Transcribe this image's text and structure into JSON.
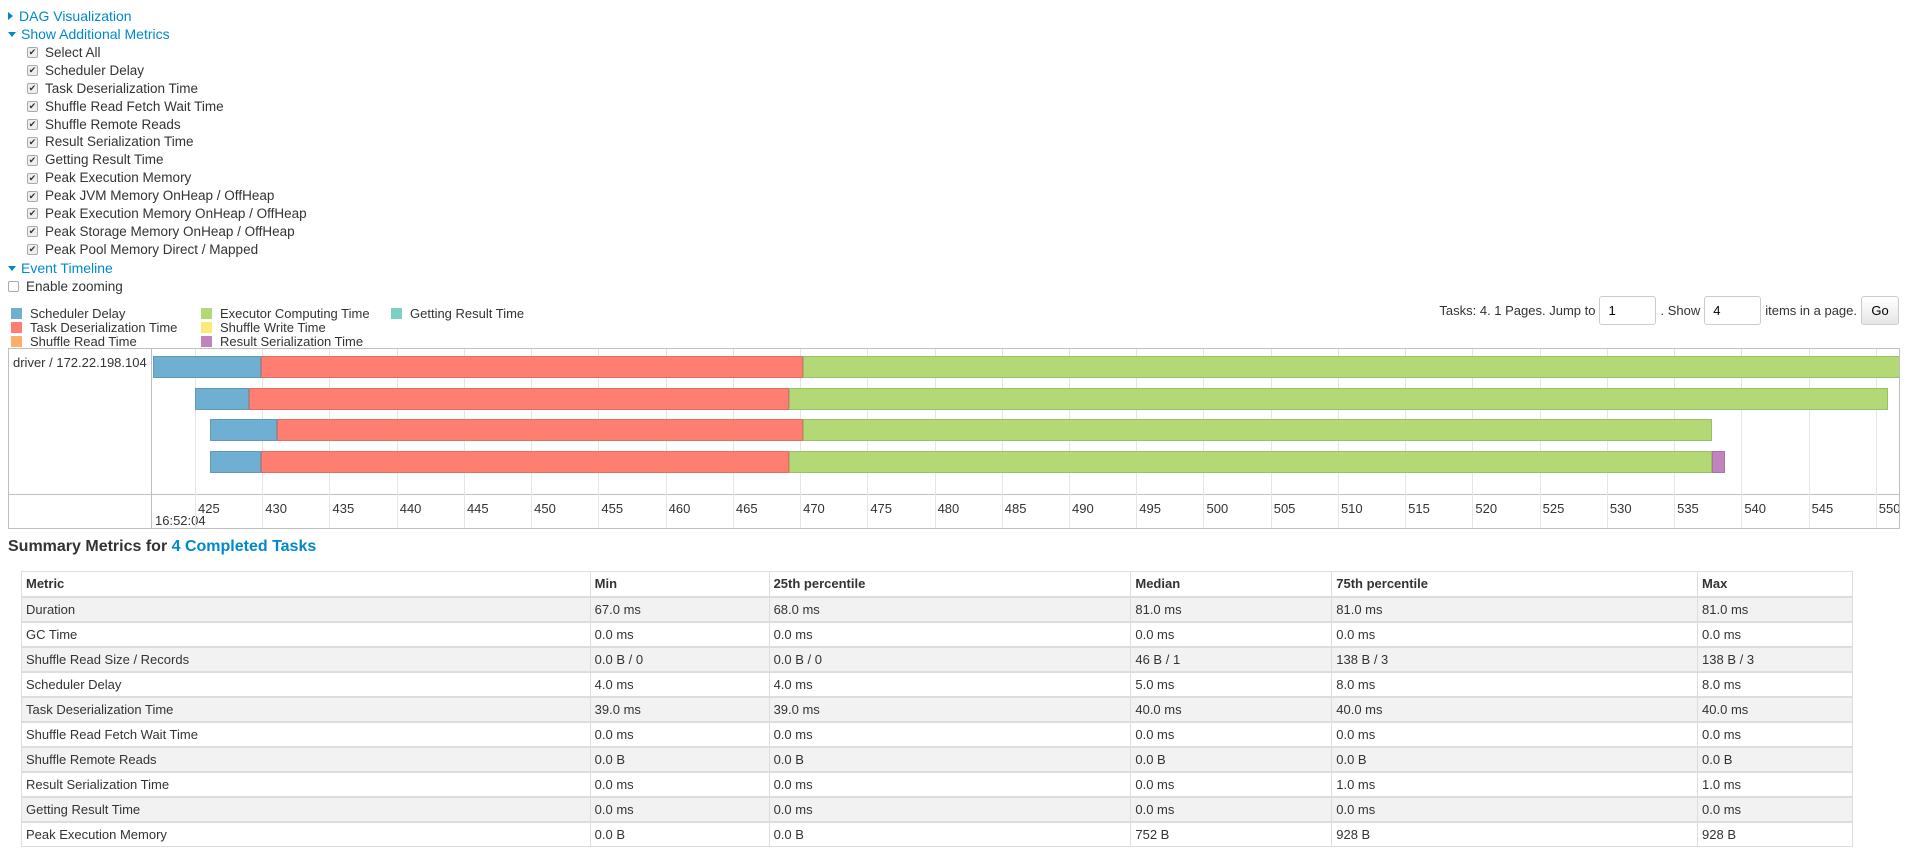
{
  "nav": {
    "dag": "DAG Visualization",
    "additional": "Show Additional Metrics",
    "timeline": "Event Timeline",
    "zoom": "Enable zooming"
  },
  "metrics": [
    {
      "label": "Select All",
      "checked": true
    },
    {
      "label": "Scheduler Delay",
      "checked": true
    },
    {
      "label": "Task Deserialization Time",
      "checked": true
    },
    {
      "label": "Shuffle Read Fetch Wait Time",
      "checked": true
    },
    {
      "label": "Shuffle Remote Reads",
      "checked": true
    },
    {
      "label": "Result Serialization Time",
      "checked": true
    },
    {
      "label": "Getting Result Time",
      "checked": true
    },
    {
      "label": "Peak Execution Memory",
      "checked": true
    },
    {
      "label": "Peak JVM Memory OnHeap / OffHeap",
      "checked": true
    },
    {
      "label": "Peak Execution Memory OnHeap / OffHeap",
      "checked": true
    },
    {
      "label": "Peak Storage Memory OnHeap / OffHeap",
      "checked": true
    },
    {
      "label": "Peak Pool Memory Direct / Mapped",
      "checked": true
    }
  ],
  "legend": [
    {
      "label": "Scheduler Delay",
      "color": "#6fb0d2"
    },
    {
      "label": "Executor Computing Time",
      "color": "#b2d975"
    },
    {
      "label": "Getting Result Time",
      "color": "#7ccfc3"
    },
    {
      "label": "Task Deserialization Time",
      "color": "#ff7e72"
    },
    {
      "label": "Shuffle Write Time",
      "color": "#ffe87a"
    },
    {
      "label": "",
      "color": ""
    },
    {
      "label": "Shuffle Read Time",
      "color": "#ffae6a"
    },
    {
      "label": "Result Serialization Time",
      "color": "#c183bd"
    }
  ],
  "pager": {
    "prefix": "Tasks: 4. 1 Pages. Jump to",
    "page": "1",
    "mid": ". Show",
    "size": "4",
    "suffix": "items in a page.",
    "go": "Go"
  },
  "timeline": {
    "executor": "driver / 172.22.198.104",
    "date": "16:52:04",
    "xlim": [
      421.8,
      551.8
    ],
    "ticks": [
      425,
      430,
      435,
      440,
      445,
      450,
      455,
      460,
      465,
      470,
      475,
      480,
      485,
      490,
      495,
      500,
      505,
      510,
      515,
      520,
      525,
      530,
      535,
      540,
      545,
      550
    ],
    "tasks": [
      {
        "segments": [
          {
            "type": "Scheduler Delay",
            "start": 421.9,
            "end": 429.9
          },
          {
            "type": "Task Deserialization Time",
            "start": 429.9,
            "end": 470.2
          },
          {
            "type": "Executor Computing Time",
            "start": 470.2,
            "end": 552.5
          }
        ]
      },
      {
        "segments": [
          {
            "type": "Scheduler Delay",
            "start": 425.0,
            "end": 429.0
          },
          {
            "type": "Task Deserialization Time",
            "start": 429.0,
            "end": 469.2
          },
          {
            "type": "Executor Computing Time",
            "start": 469.2,
            "end": 550.9
          }
        ]
      },
      {
        "segments": [
          {
            "type": "Scheduler Delay",
            "start": 426.1,
            "end": 431.1
          },
          {
            "type": "Task Deserialization Time",
            "start": 431.1,
            "end": 470.2
          },
          {
            "type": "Executor Computing Time",
            "start": 470.2,
            "end": 537.8
          }
        ]
      },
      {
        "segments": [
          {
            "type": "Scheduler Delay",
            "start": 426.1,
            "end": 429.9
          },
          {
            "type": "Task Deserialization Time",
            "start": 429.9,
            "end": 469.2
          },
          {
            "type": "Executor Computing Time",
            "start": 469.2,
            "end": 537.8
          },
          {
            "type": "Result Serialization Time",
            "start": 537.8,
            "end": 538.8
          }
        ]
      }
    ]
  },
  "summary": {
    "prefix": "Summary Metrics for ",
    "link": "4 Completed Tasks",
    "headers": [
      "Metric",
      "Min",
      "25th percentile",
      "Median",
      "75th percentile",
      "Max"
    ],
    "rows": [
      [
        "Duration",
        "67.0 ms",
        "68.0 ms",
        "81.0 ms",
        "81.0 ms",
        "81.0 ms"
      ],
      [
        "GC Time",
        "0.0 ms",
        "0.0 ms",
        "0.0 ms",
        "0.0 ms",
        "0.0 ms"
      ],
      [
        "Shuffle Read Size / Records",
        "0.0 B / 0",
        "0.0 B / 0",
        "46 B / 1",
        "138 B / 3",
        "138 B / 3"
      ],
      [
        "Scheduler Delay",
        "4.0 ms",
        "4.0 ms",
        "5.0 ms",
        "8.0 ms",
        "8.0 ms"
      ],
      [
        "Task Deserialization Time",
        "39.0 ms",
        "39.0 ms",
        "40.0 ms",
        "40.0 ms",
        "40.0 ms"
      ],
      [
        "Shuffle Read Fetch Wait Time",
        "0.0 ms",
        "0.0 ms",
        "0.0 ms",
        "0.0 ms",
        "0.0 ms"
      ],
      [
        "Shuffle Remote Reads",
        "0.0 B",
        "0.0 B",
        "0.0 B",
        "0.0 B",
        "0.0 B"
      ],
      [
        "Result Serialization Time",
        "0.0 ms",
        "0.0 ms",
        "0.0 ms",
        "1.0 ms",
        "1.0 ms"
      ],
      [
        "Getting Result Time",
        "0.0 ms",
        "0.0 ms",
        "0.0 ms",
        "0.0 ms",
        "0.0 ms"
      ],
      [
        "Peak Execution Memory",
        "0.0 B",
        "0.0 B",
        "752 B",
        "928 B",
        "928 B"
      ]
    ]
  }
}
